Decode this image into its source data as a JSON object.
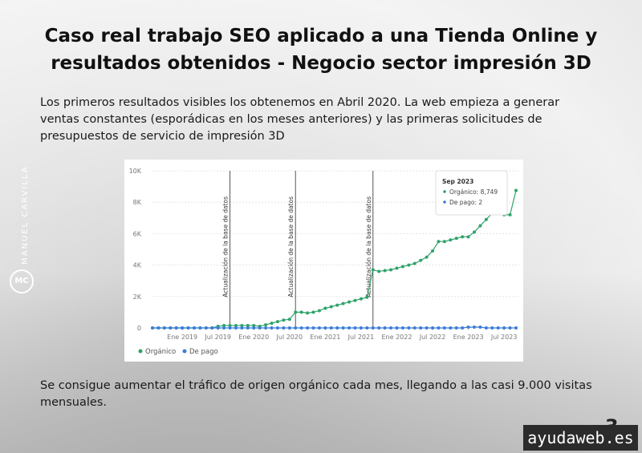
{
  "title": "Caso real trabajo SEO aplicado a una Tienda Online y resultados obtenidos - Negocio sector impresión 3D",
  "paragraphs": [
    "Los primeros resultados visibles los obtenemos en Abril 2020. La web empieza a generar ventas constantes (esporádicas en los meses anteriores) y las primeras solicitudes de presupuestos de servicio de impresión 3D",
    "Se consigue aumentar el tráfico de origen orgánico cada mes, llegando a las casi 9.000 visitas mensuales."
  ],
  "side_label": "MANUEL CARVILLA",
  "logo": "MC",
  "page_number": "3",
  "brand": "ayudaweb.es",
  "chart_data": {
    "type": "line",
    "x": [
      "2018-08",
      "2018-09",
      "2018-10",
      "2018-11",
      "2018-12",
      "2019-01",
      "2019-02",
      "2019-03",
      "2019-04",
      "2019-05",
      "2019-06",
      "2019-07",
      "2019-08",
      "2019-09",
      "2019-10",
      "2019-11",
      "2019-12",
      "2020-01",
      "2020-02",
      "2020-03",
      "2020-04",
      "2020-05",
      "2020-06",
      "2020-07",
      "2020-08",
      "2020-09",
      "2020-10",
      "2020-11",
      "2020-12",
      "2021-01",
      "2021-02",
      "2021-03",
      "2021-04",
      "2021-05",
      "2021-06",
      "2021-07",
      "2021-08",
      "2021-09",
      "2021-10",
      "2021-11",
      "2021-12",
      "2022-01",
      "2022-02",
      "2022-03",
      "2022-04",
      "2022-05",
      "2022-06",
      "2022-07",
      "2022-08",
      "2022-09",
      "2022-10",
      "2022-11",
      "2022-12",
      "2023-01",
      "2023-02",
      "2023-03",
      "2023-04",
      "2023-05",
      "2023-06",
      "2023-07",
      "2023-08",
      "2023-09"
    ],
    "series": [
      {
        "name": "Orgánico",
        "color": "#2fa36b",
        "values": [
          0,
          0,
          0,
          0,
          0,
          0,
          0,
          0,
          0,
          0,
          0,
          100,
          150,
          150,
          150,
          150,
          150,
          150,
          100,
          200,
          300,
          400,
          500,
          550,
          1000,
          1000,
          950,
          1000,
          1100,
          1250,
          1350,
          1450,
          1550,
          1650,
          1750,
          1850,
          1950,
          3700,
          3600,
          3650,
          3700,
          3800,
          3900,
          4000,
          4100,
          4300,
          4500,
          4900,
          5500,
          5500,
          5600,
          5700,
          5800,
          5800,
          6100,
          6500,
          6900,
          7300,
          7700,
          7200,
          7200,
          8749
        ]
      },
      {
        "name": "De pago",
        "color": "#3b7dd8",
        "values": [
          0,
          0,
          0,
          0,
          0,
          0,
          0,
          0,
          0,
          0,
          0,
          0,
          0,
          0,
          0,
          0,
          0,
          0,
          0,
          0,
          0,
          0,
          0,
          0,
          0,
          0,
          0,
          0,
          0,
          0,
          0,
          0,
          0,
          0,
          0,
          0,
          0,
          0,
          0,
          0,
          0,
          0,
          0,
          0,
          0,
          0,
          0,
          0,
          0,
          0,
          0,
          0,
          0,
          50,
          50,
          50,
          0,
          0,
          0,
          0,
          0,
          2
        ]
      }
    ],
    "xlim": [
      "2018-08",
      "2023-09"
    ],
    "xticks": [
      {
        "value": "2019-01",
        "label": "Ene 2019"
      },
      {
        "value": "2019-07",
        "label": "Jul 2019"
      },
      {
        "value": "2020-01",
        "label": "Ene 2020"
      },
      {
        "value": "2020-07",
        "label": "Jul 2020"
      },
      {
        "value": "2021-01",
        "label": "Ene 2021"
      },
      {
        "value": "2021-07",
        "label": "Jul 2021"
      },
      {
        "value": "2022-01",
        "label": "Ene 2022"
      },
      {
        "value": "2022-07",
        "label": "Jul 2022"
      },
      {
        "value": "2023-01",
        "label": "Ene 2023"
      },
      {
        "value": "2023-07",
        "label": "Jul 2023"
      }
    ],
    "ylim": [
      0,
      10000
    ],
    "yticks": [
      0,
      {
        "value": 2000,
        "label": "2K"
      },
      {
        "value": 4000,
        "label": "4K"
      },
      {
        "value": 6000,
        "label": "6K"
      },
      {
        "value": 8000,
        "label": "8K"
      },
      {
        "value": 10000,
        "label": "10K"
      }
    ],
    "grid": true,
    "annotations": [
      {
        "x": "2019-09",
        "label": "Actualización de la base de datos"
      },
      {
        "x": "2020-08",
        "label": "Actualización de la base de datos"
      },
      {
        "x": "2021-09",
        "label": "Actualización de la base de datos"
      }
    ],
    "tooltip": {
      "title": "Sep 2023",
      "items": [
        "Orgánico: 8,749",
        "De pago: 2"
      ]
    },
    "legend": "bottom-left"
  }
}
